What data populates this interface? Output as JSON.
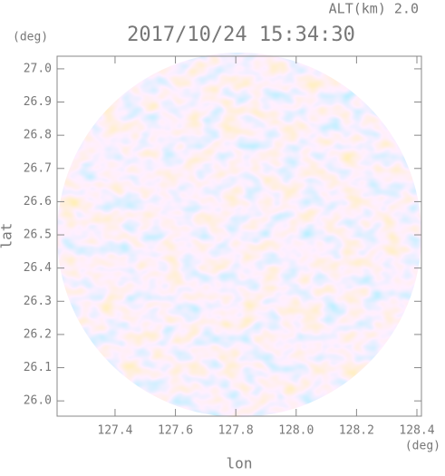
{
  "chart_data": {
    "type": "polar",
    "title": "2017/10/24 15:34:30",
    "annotation": "ALT(km)  2.0",
    "x_label": "lon",
    "y_label": "lat",
    "x_unit": "(deg)",
    "y_unit": "(deg)",
    "xlim": [
      127.208,
      128.415
    ],
    "ylim": [
      25.954,
      27.038
    ],
    "xticks": [
      127.4,
      127.6,
      127.8,
      {
        "value": 128,
        "label": "128.0"
      },
      128.2,
      128.4
    ],
    "yticks": [
      {
        "value": 26,
        "label": "26.0"
      },
      26.1,
      26.2,
      26.3,
      26.4,
      26.5,
      26.6,
      26.7,
      26.8,
      26.9,
      {
        "value": 27,
        "label": "27.0"
      }
    ]
  }
}
